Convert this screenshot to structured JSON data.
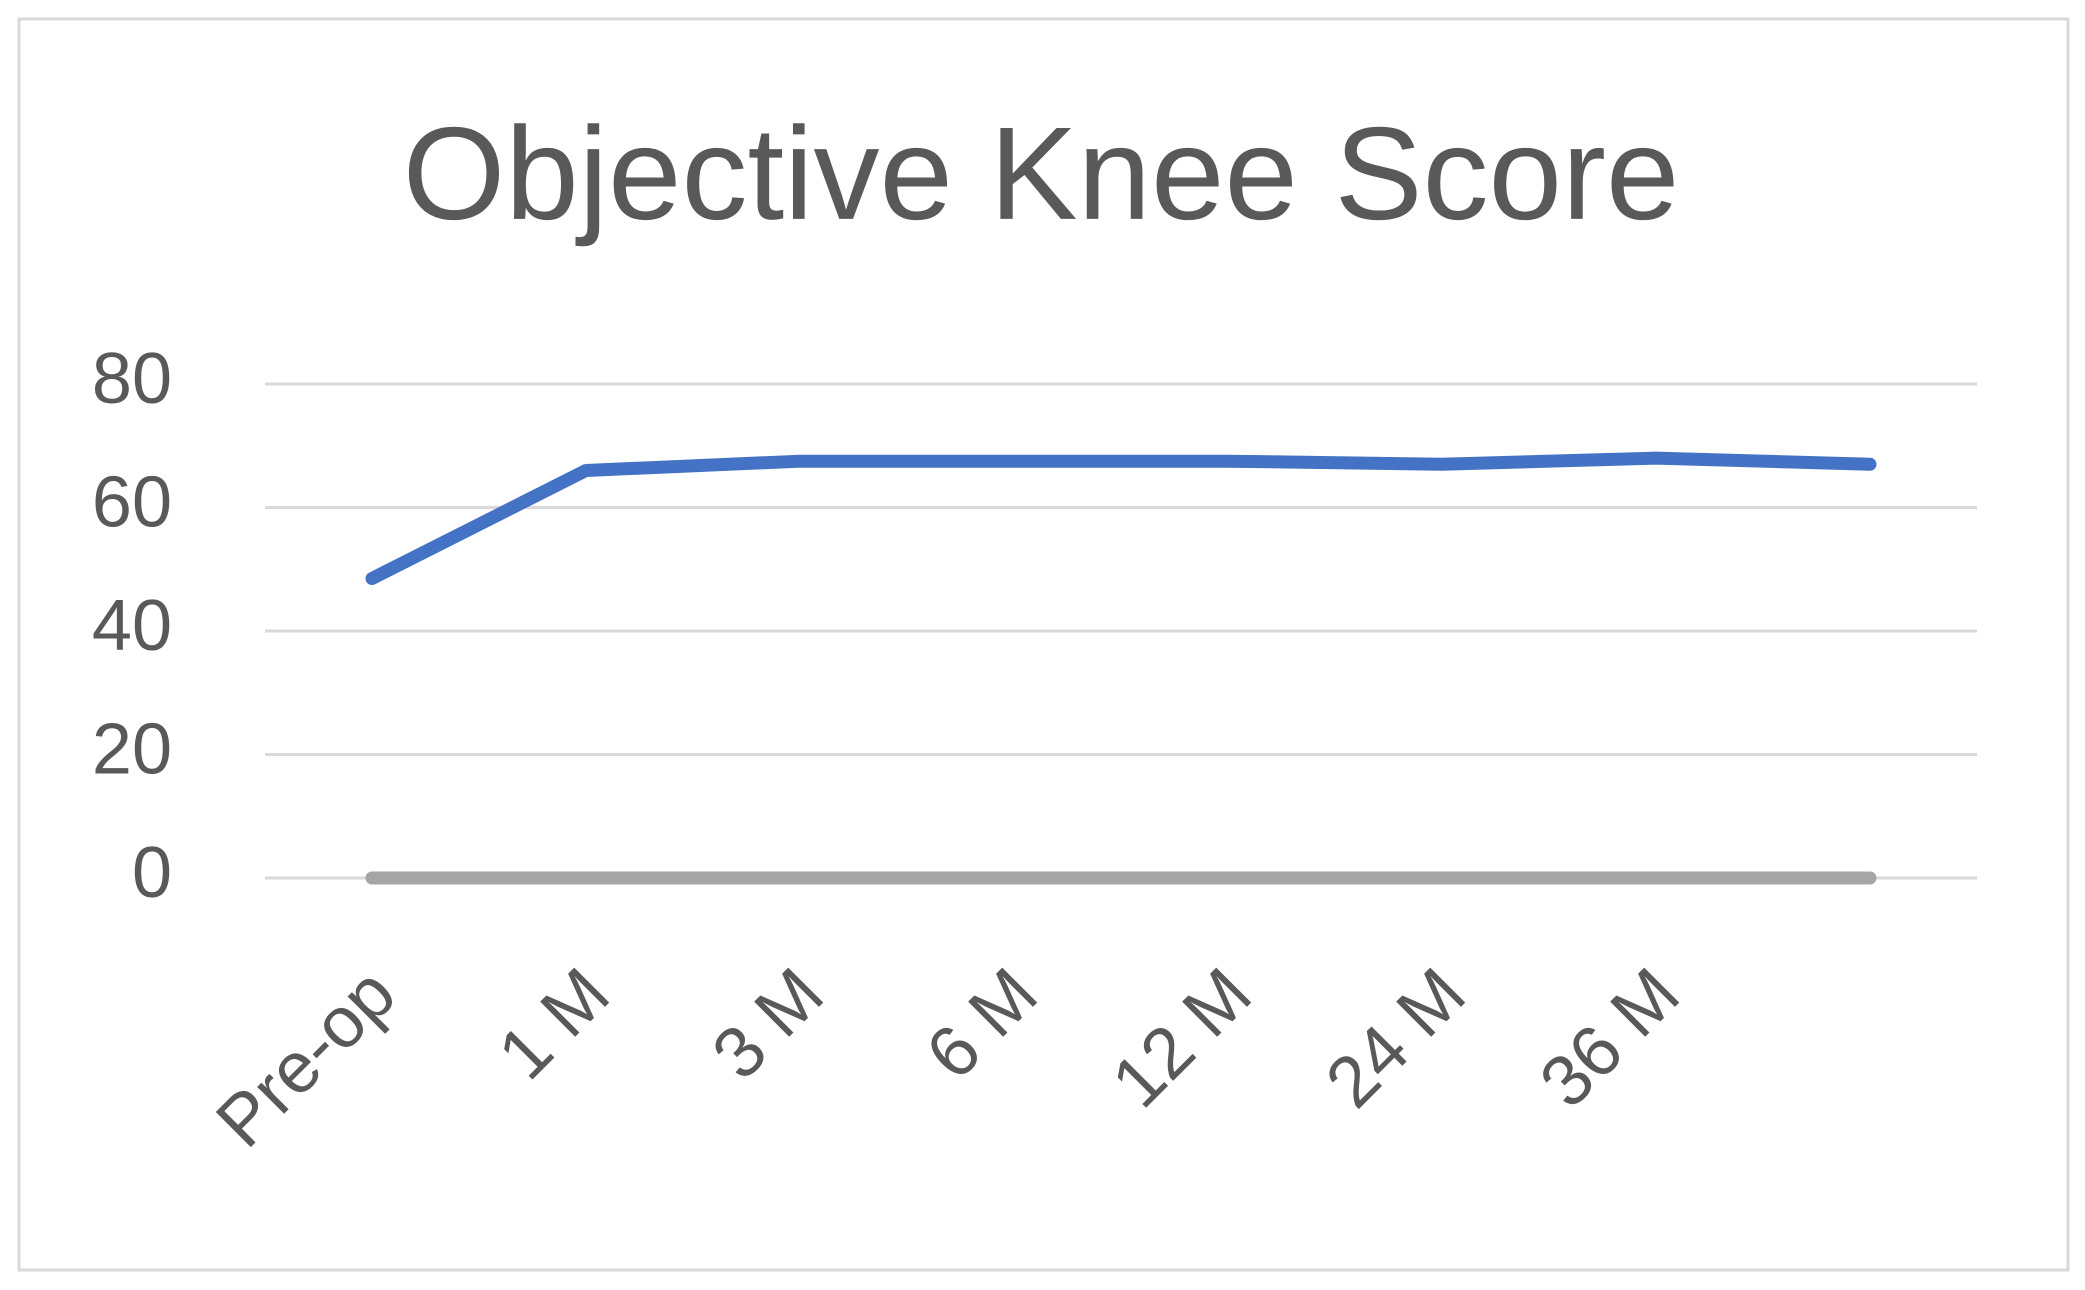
{
  "chart_data": {
    "type": "line",
    "title": "Objective Knee Score",
    "categories": [
      "Pre-op",
      "1 M",
      "3 M",
      "6 M",
      "12 M",
      "24 M",
      "36 M",
      null
    ],
    "series": [
      {
        "color": "#4472c4",
        "values": [
          48.5,
          66,
          67.5,
          67.5,
          67.5,
          67,
          68,
          67
        ]
      },
      {
        "color": "#a5a5a5",
        "values": [
          0,
          0,
          0,
          0,
          0,
          0,
          0,
          0
        ]
      }
    ],
    "ylim": [
      0,
      80
    ],
    "yticks": [
      0,
      20,
      40,
      60,
      80
    ],
    "grid": true
  }
}
